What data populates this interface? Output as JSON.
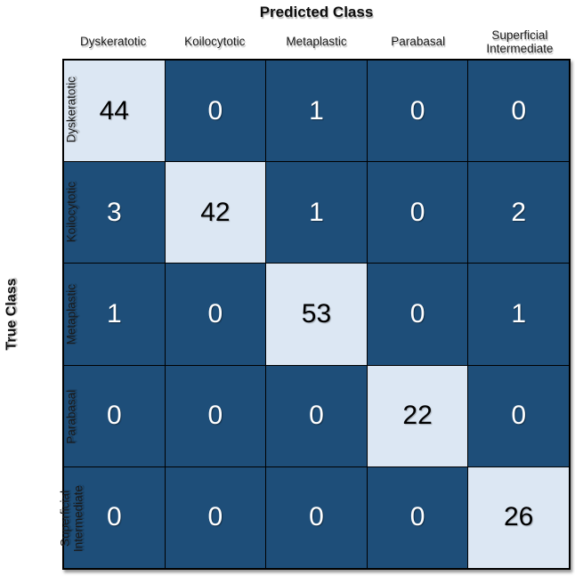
{
  "chart_data": {
    "type": "heatmap",
    "subtype": "confusion-matrix",
    "title": "",
    "xlabel": "Predicted Class",
    "ylabel": "True Class",
    "categories": [
      "Dyskeratotic",
      "Koilocytotic",
      "Metaplastic",
      "Parabasal",
      "Superficial Intermediate"
    ],
    "matrix": [
      [
        44,
        0,
        1,
        0,
        0
      ],
      [
        3,
        42,
        1,
        0,
        2
      ],
      [
        1,
        0,
        53,
        0,
        1
      ],
      [
        0,
        0,
        0,
        22,
        0
      ],
      [
        0,
        0,
        0,
        0,
        26
      ]
    ],
    "layout": {
      "grid_on": true,
      "legend": "none",
      "row_axis_side": "left",
      "column_axis_side": "top"
    },
    "colors": {
      "diagonal_cell": "#DCE7F3",
      "off_diagonal_cell": "#1E4E79",
      "grid_line": "#000000",
      "text_on_dark": "#FFFFFF",
      "text_on_light": "#000000",
      "label_text": "#1A1A1A"
    }
  }
}
